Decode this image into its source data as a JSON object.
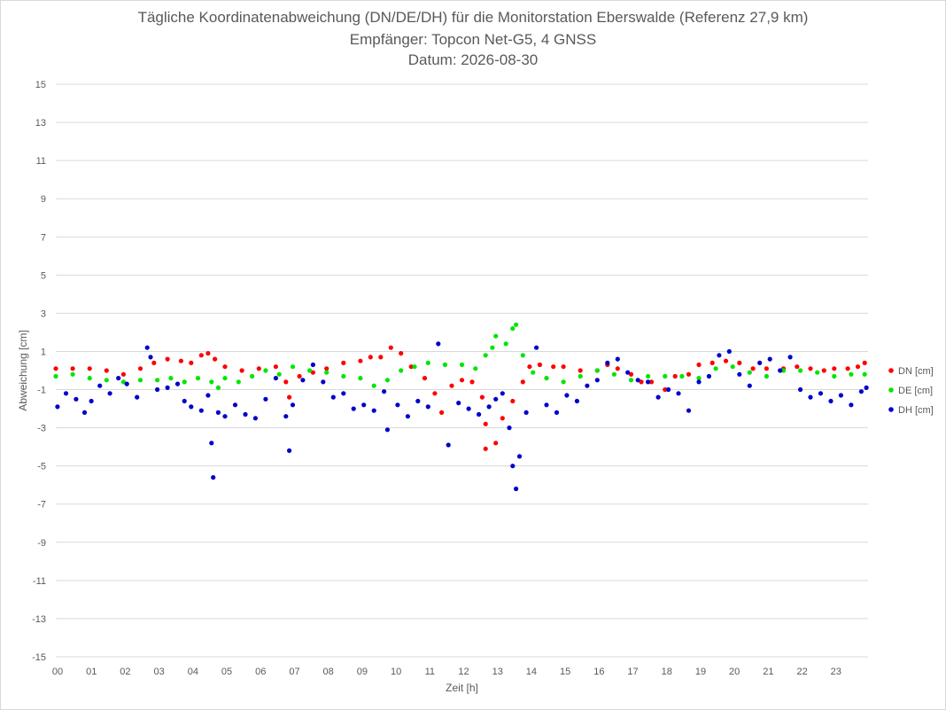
{
  "chart_data": {
    "type": "scatter",
    "title": "Tägliche Koordinatenabweichung (DN/DE/DH) für die Monitorstation Eberswalde (Referenz 27,9 km)",
    "subtitle": "Empfänger: Topcon Net-G5, 4 GNSS",
    "date_line": "Datum: 2026-08-30",
    "xlabel": "Zeit [h]",
    "ylabel": "Abweichung [cm]",
    "xlim": [
      0,
      24
    ],
    "ylim": [
      -15,
      15
    ],
    "x_ticks": [
      "00",
      "01",
      "02",
      "03",
      "04",
      "05",
      "06",
      "07",
      "08",
      "09",
      "10",
      "11",
      "12",
      "13",
      "14",
      "15",
      "16",
      "17",
      "18",
      "19",
      "20",
      "21",
      "22",
      "23"
    ],
    "y_ticks": [
      "15",
      "13",
      "11",
      "9",
      "7",
      "5",
      "3",
      "1",
      "-1",
      "-3",
      "-5",
      "-7",
      "-9",
      "-11",
      "-13",
      "-15"
    ],
    "grid": "horizontal",
    "legend_position": "right",
    "series": [
      {
        "name": "DN [cm]",
        "color": "#ff0000",
        "points": [
          [
            0.0,
            0.1
          ],
          [
            0.5,
            0.1
          ],
          [
            1.0,
            0.1
          ],
          [
            1.5,
            0.0
          ],
          [
            2.0,
            -0.2
          ],
          [
            2.5,
            0.1
          ],
          [
            2.9,
            0.4
          ],
          [
            3.3,
            0.6
          ],
          [
            3.7,
            0.5
          ],
          [
            4.0,
            0.4
          ],
          [
            4.3,
            0.8
          ],
          [
            4.5,
            0.9
          ],
          [
            4.7,
            0.6
          ],
          [
            5.0,
            0.2
          ],
          [
            5.5,
            0.0
          ],
          [
            6.0,
            0.1
          ],
          [
            6.5,
            0.2
          ],
          [
            6.8,
            -0.6
          ],
          [
            6.9,
            -1.4
          ],
          [
            7.2,
            -0.3
          ],
          [
            7.6,
            -0.1
          ],
          [
            8.0,
            0.1
          ],
          [
            8.5,
            0.4
          ],
          [
            9.0,
            0.5
          ],
          [
            9.3,
            0.7
          ],
          [
            9.6,
            0.7
          ],
          [
            9.9,
            1.2
          ],
          [
            10.2,
            0.9
          ],
          [
            10.5,
            0.2
          ],
          [
            10.9,
            -0.4
          ],
          [
            11.2,
            -1.2
          ],
          [
            11.4,
            -2.2
          ],
          [
            11.7,
            -0.8
          ],
          [
            12.0,
            -0.5
          ],
          [
            12.3,
            -0.6
          ],
          [
            12.6,
            -1.4
          ],
          [
            12.7,
            -2.8
          ],
          [
            12.7,
            -4.1
          ],
          [
            13.0,
            -3.8
          ],
          [
            13.2,
            -2.5
          ],
          [
            13.5,
            -1.6
          ],
          [
            13.8,
            -0.6
          ],
          [
            14.0,
            0.2
          ],
          [
            14.3,
            0.3
          ],
          [
            14.7,
            0.2
          ],
          [
            15.0,
            0.2
          ],
          [
            15.5,
            0.0
          ],
          [
            16.0,
            0.0
          ],
          [
            16.3,
            0.3
          ],
          [
            16.6,
            0.1
          ],
          [
            17.0,
            -0.2
          ],
          [
            17.3,
            -0.6
          ],
          [
            17.6,
            -0.6
          ],
          [
            18.0,
            -1.0
          ],
          [
            18.3,
            -0.3
          ],
          [
            18.7,
            -0.2
          ],
          [
            19.0,
            0.3
          ],
          [
            19.4,
            0.4
          ],
          [
            19.8,
            0.5
          ],
          [
            20.2,
            0.4
          ],
          [
            20.6,
            0.1
          ],
          [
            21.0,
            0.1
          ],
          [
            21.5,
            0.1
          ],
          [
            21.9,
            0.2
          ],
          [
            22.3,
            0.1
          ],
          [
            22.7,
            0.0
          ],
          [
            23.0,
            0.1
          ],
          [
            23.4,
            0.1
          ],
          [
            23.7,
            0.2
          ],
          [
            23.9,
            0.4
          ]
        ]
      },
      {
        "name": "DE [cm]",
        "color": "#00e600",
        "points": [
          [
            0.0,
            -0.3
          ],
          [
            0.5,
            -0.2
          ],
          [
            1.0,
            -0.4
          ],
          [
            1.5,
            -0.5
          ],
          [
            2.0,
            -0.6
          ],
          [
            2.5,
            -0.5
          ],
          [
            3.0,
            -0.5
          ],
          [
            3.4,
            -0.4
          ],
          [
            3.8,
            -0.6
          ],
          [
            4.2,
            -0.4
          ],
          [
            4.6,
            -0.6
          ],
          [
            4.8,
            -0.9
          ],
          [
            5.0,
            -0.4
          ],
          [
            5.4,
            -0.6
          ],
          [
            5.8,
            -0.3
          ],
          [
            6.2,
            0.0
          ],
          [
            6.6,
            -0.2
          ],
          [
            7.0,
            0.2
          ],
          [
            7.5,
            0.0
          ],
          [
            8.0,
            -0.1
          ],
          [
            8.5,
            -0.3
          ],
          [
            9.0,
            -0.4
          ],
          [
            9.4,
            -0.8
          ],
          [
            9.8,
            -0.5
          ],
          [
            10.2,
            0.0
          ],
          [
            10.6,
            0.2
          ],
          [
            11.0,
            0.4
          ],
          [
            11.5,
            0.3
          ],
          [
            12.0,
            0.3
          ],
          [
            12.4,
            0.1
          ],
          [
            12.7,
            0.8
          ],
          [
            12.9,
            1.2
          ],
          [
            13.0,
            1.8
          ],
          [
            13.3,
            1.4
          ],
          [
            13.5,
            2.2
          ],
          [
            13.6,
            2.4
          ],
          [
            13.8,
            0.8
          ],
          [
            14.1,
            -0.1
          ],
          [
            14.5,
            -0.4
          ],
          [
            15.0,
            -0.6
          ],
          [
            15.5,
            -0.3
          ],
          [
            16.0,
            0.0
          ],
          [
            16.5,
            -0.2
          ],
          [
            17.0,
            -0.5
          ],
          [
            17.5,
            -0.3
          ],
          [
            18.0,
            -0.3
          ],
          [
            18.5,
            -0.3
          ],
          [
            19.0,
            -0.4
          ],
          [
            19.5,
            0.1
          ],
          [
            20.0,
            0.2
          ],
          [
            20.5,
            -0.1
          ],
          [
            21.0,
            -0.3
          ],
          [
            21.5,
            0.0
          ],
          [
            22.0,
            0.0
          ],
          [
            22.5,
            -0.1
          ],
          [
            23.0,
            -0.3
          ],
          [
            23.5,
            -0.2
          ],
          [
            23.9,
            -0.2
          ]
        ]
      },
      {
        "name": "DH [cm]",
        "color": "#0000cc",
        "points": [
          [
            0.05,
            -1.9
          ],
          [
            0.3,
            -1.2
          ],
          [
            0.6,
            -1.5
          ],
          [
            0.85,
            -2.2
          ],
          [
            1.05,
            -1.6
          ],
          [
            1.3,
            -0.8
          ],
          [
            1.6,
            -1.2
          ],
          [
            1.85,
            -0.4
          ],
          [
            2.1,
            -0.7
          ],
          [
            2.4,
            -1.4
          ],
          [
            2.7,
            1.2
          ],
          [
            2.8,
            0.7
          ],
          [
            3.0,
            -1.0
          ],
          [
            3.3,
            -0.9
          ],
          [
            3.6,
            -0.7
          ],
          [
            3.8,
            -1.6
          ],
          [
            4.0,
            -1.9
          ],
          [
            4.3,
            -2.1
          ],
          [
            4.5,
            -1.3
          ],
          [
            4.6,
            -3.8
          ],
          [
            4.65,
            -5.6
          ],
          [
            4.8,
            -2.2
          ],
          [
            5.0,
            -2.4
          ],
          [
            5.3,
            -1.8
          ],
          [
            5.6,
            -2.3
          ],
          [
            5.9,
            -2.5
          ],
          [
            6.2,
            -1.5
          ],
          [
            6.5,
            -0.4
          ],
          [
            6.8,
            -2.4
          ],
          [
            6.9,
            -4.2
          ],
          [
            7.0,
            -1.8
          ],
          [
            7.3,
            -0.5
          ],
          [
            7.6,
            0.3
          ],
          [
            7.9,
            -0.6
          ],
          [
            8.2,
            -1.4
          ],
          [
            8.5,
            -1.2
          ],
          [
            8.8,
            -2.0
          ],
          [
            9.1,
            -1.8
          ],
          [
            9.4,
            -2.1
          ],
          [
            9.7,
            -1.1
          ],
          [
            9.8,
            -3.1
          ],
          [
            10.1,
            -1.8
          ],
          [
            10.4,
            -2.4
          ],
          [
            10.7,
            -1.6
          ],
          [
            11.0,
            -1.9
          ],
          [
            11.3,
            1.4
          ],
          [
            11.6,
            -3.9
          ],
          [
            11.9,
            -1.7
          ],
          [
            12.2,
            -2.0
          ],
          [
            12.5,
            -2.3
          ],
          [
            12.8,
            -1.9
          ],
          [
            13.0,
            -1.5
          ],
          [
            13.2,
            -1.2
          ],
          [
            13.4,
            -3.0
          ],
          [
            13.5,
            -5.0
          ],
          [
            13.6,
            -6.2
          ],
          [
            13.7,
            -4.5
          ],
          [
            13.9,
            -2.2
          ],
          [
            14.2,
            1.2
          ],
          [
            14.5,
            -1.8
          ],
          [
            14.8,
            -2.2
          ],
          [
            15.1,
            -1.3
          ],
          [
            15.4,
            -1.6
          ],
          [
            15.7,
            -0.8
          ],
          [
            16.0,
            -0.5
          ],
          [
            16.3,
            0.4
          ],
          [
            16.6,
            0.6
          ],
          [
            16.9,
            -0.1
          ],
          [
            17.2,
            -0.5
          ],
          [
            17.5,
            -0.6
          ],
          [
            17.8,
            -1.4
          ],
          [
            18.1,
            -1.0
          ],
          [
            18.4,
            -1.2
          ],
          [
            18.7,
            -2.1
          ],
          [
            19.0,
            -0.6
          ],
          [
            19.3,
            -0.3
          ],
          [
            19.6,
            0.8
          ],
          [
            19.9,
            1.0
          ],
          [
            20.2,
            -0.2
          ],
          [
            20.5,
            -0.8
          ],
          [
            20.8,
            0.4
          ],
          [
            21.1,
            0.6
          ],
          [
            21.4,
            0.0
          ],
          [
            21.7,
            0.7
          ],
          [
            22.0,
            -1.0
          ],
          [
            22.3,
            -1.4
          ],
          [
            22.6,
            -1.2
          ],
          [
            22.9,
            -1.6
          ],
          [
            23.2,
            -1.3
          ],
          [
            23.5,
            -1.8
          ],
          [
            23.8,
            -1.1
          ],
          [
            23.95,
            -0.9
          ]
        ]
      }
    ]
  }
}
